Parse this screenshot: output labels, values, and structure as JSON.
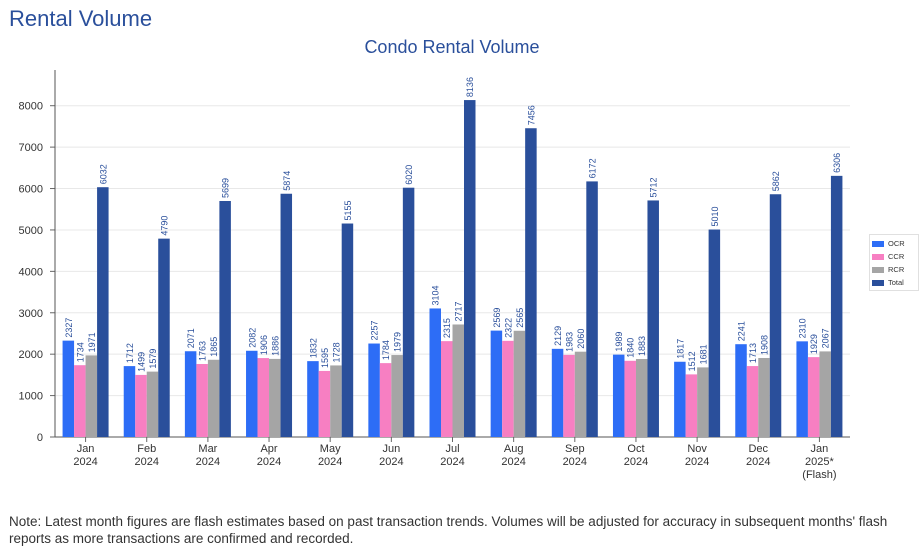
{
  "page": {
    "heading": "Rental Volume",
    "note": "Note: Latest month figures are flash estimates based on past transaction trends. Volumes will be adjusted for accuracy in subsequent months' flash reports as more transactions are confirmed and recorded."
  },
  "chart_data": {
    "type": "bar",
    "title": "Condo Rental Volume",
    "xlabel": "",
    "ylabel": "",
    "ylim": [
      0,
      8500
    ],
    "yticks": [
      0,
      1000,
      2000,
      3000,
      4000,
      5000,
      6000,
      7000,
      8000
    ],
    "grid": true,
    "legend_position": "right",
    "categories": [
      [
        "Jan",
        "2024"
      ],
      [
        "Feb",
        "2024"
      ],
      [
        "Mar",
        "2024"
      ],
      [
        "Apr",
        "2024"
      ],
      [
        "May",
        "2024"
      ],
      [
        "Jun",
        "2024"
      ],
      [
        "Jul",
        "2024"
      ],
      [
        "Aug",
        "2024"
      ],
      [
        "Sep",
        "2024"
      ],
      [
        "Oct",
        "2024"
      ],
      [
        "Nov",
        "2024"
      ],
      [
        "Dec",
        "2024"
      ],
      [
        "Jan",
        "2025*",
        "(Flash)"
      ]
    ],
    "series": [
      {
        "name": "OCR",
        "color": "#2d6df6",
        "values": [
          2327,
          1712,
          2071,
          2082,
          1832,
          2257,
          3104,
          2569,
          2129,
          1989,
          1817,
          2241,
          2310
        ]
      },
      {
        "name": "CCR",
        "color": "#f77fc2",
        "values": [
          1734,
          1499,
          1763,
          1906,
          1595,
          1784,
          2315,
          2322,
          1983,
          1840,
          1512,
          1713,
          1929
        ]
      },
      {
        "name": "RCR",
        "color": "#a5a5a5",
        "values": [
          1971,
          1579,
          1865,
          1886,
          1728,
          1979,
          2717,
          2565,
          2060,
          1883,
          1681,
          1908,
          2067
        ]
      },
      {
        "name": "Total",
        "color": "#2a4f9b",
        "values": [
          6032,
          4790,
          5699,
          5874,
          5155,
          6020,
          8136,
          7456,
          6172,
          5712,
          5010,
          5862,
          6306
        ]
      }
    ]
  }
}
